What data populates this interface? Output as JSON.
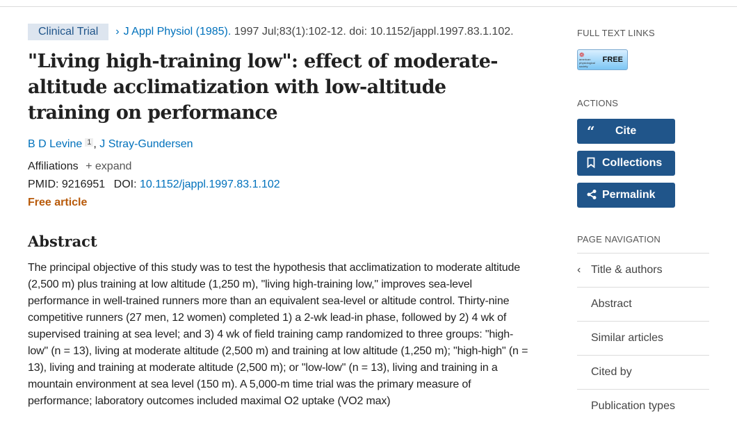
{
  "header": {
    "badge": "Clinical Trial",
    "journal": "J Appl Physiol (1985).",
    "citation": " 1997 Jul;83(1):102-12. doi: 10.1152/jappl.1997.83.1.102."
  },
  "article": {
    "title": "\"Living high-training low\": effect of moderate-altitude acclimatization with low-altitude training on performance",
    "authors": [
      {
        "name": "B D Levine",
        "sup": "1"
      },
      {
        "name": "J Stray-Gundersen"
      }
    ],
    "affiliations_label": "Affiliations",
    "expand_label": "expand",
    "pmid_label": "PMID:",
    "pmid": "9216951",
    "doi_label": "DOI:",
    "doi": "10.1152/jappl.1997.83.1.102",
    "free_label": "Free article",
    "abstract_heading": "Abstract",
    "abstract": "The principal objective of this study was to test the hypothesis that acclimatization to moderate altitude (2,500 m) plus training at low altitude (1,250 m), \"living high-training low,\" improves sea-level performance in well-trained runners more than an equivalent sea-level or altitude control. Thirty-nine competitive runners (27 men, 12 women) completed 1) a 2-wk lead-in phase, followed by 2) 4 wk of supervised training at sea level; and 3) 4 wk of field training camp randomized to three groups: \"high-low\" (n = 13), living at moderate altitude (2,500 m) and training at low altitude (1,250 m); \"high-high\" (n = 13), living and training at moderate altitude (2,500 m); or \"low-low\" (n = 13), living and training in a mountain environment at sea level (150 m). A 5,000-m time trial was the primary measure of performance; laboratory outcomes included maximal O2 uptake (VO2 max)"
  },
  "sidebar": {
    "full_text_heading": "FULL TEXT LINKS",
    "full_text_button": "FREE",
    "publisher_logo": "american physiological society",
    "actions_heading": "ACTIONS",
    "actions": [
      {
        "label": "Cite",
        "icon": "quote-icon"
      },
      {
        "label": "Collections",
        "icon": "bookmark-icon"
      },
      {
        "label": "Permalink",
        "icon": "share-icon"
      }
    ],
    "page_nav_heading": "PAGE NAVIGATION",
    "page_nav": [
      "Title & authors",
      "Abstract",
      "Similar articles",
      "Cited by",
      "Publication types"
    ]
  },
  "colors": {
    "link": "#0071bc",
    "button": "#20558a",
    "free": "#b85a0a",
    "badge_bg": "#dde5ef"
  }
}
